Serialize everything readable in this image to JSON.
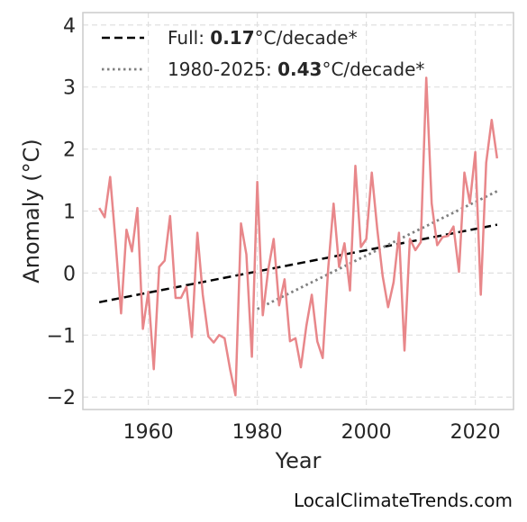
{
  "chart_data": {
    "type": "line",
    "title": "",
    "xlabel": "Year",
    "ylabel": "Anomaly (°C)",
    "xlim": [
      1948,
      2027
    ],
    "ylim": [
      -2.2,
      4.2
    ],
    "x_ticks": [
      1960,
      1980,
      2000,
      2020
    ],
    "x_tick_labels": [
      "1960",
      "1980",
      "2000",
      "2020"
    ],
    "y_ticks": [
      -2,
      -1,
      0,
      1,
      2,
      3,
      4
    ],
    "y_tick_labels": [
      "−2",
      "−1",
      "0",
      "1",
      "2",
      "3",
      "4"
    ],
    "grid": true,
    "legend_position": "top-left",
    "colors": {
      "series": "#e8878a",
      "full_trend": "#000000",
      "recent_trend": "#808080",
      "grid": "#e0e0e0",
      "frame": "#cccccc"
    },
    "series": [
      {
        "x": [
          1951,
          1952,
          1953,
          1954,
          1955,
          1956,
          1957,
          1958,
          1959,
          1960,
          1961,
          1962,
          1963,
          1964,
          1965,
          1966,
          1967,
          1968,
          1969,
          1970,
          1971,
          1972,
          1973,
          1974,
          1975,
          1976,
          1977,
          1978,
          1979,
          1980,
          1981,
          1982,
          1983,
          1984,
          1985,
          1986,
          1987,
          1988,
          1989,
          1990,
          1991,
          1992,
          1993,
          1994,
          1995,
          1996,
          1997,
          1998,
          1999,
          2000,
          2001,
          2002,
          2003,
          2004,
          2005,
          2006,
          2007,
          2008,
          2009,
          2010,
          2011,
          2012,
          2013,
          2014,
          2015,
          2016,
          2017,
          2018,
          2019,
          2020,
          2021,
          2022,
          2023,
          2024
        ],
        "values": [
          1.05,
          0.9,
          1.55,
          0.5,
          -0.65,
          0.7,
          0.35,
          1.05,
          -0.9,
          -0.3,
          -1.55,
          0.1,
          0.2,
          0.92,
          -0.4,
          -0.4,
          -0.22,
          -1.03,
          0.65,
          -0.35,
          -1.02,
          -1.12,
          -1.0,
          -1.05,
          -1.55,
          -1.97,
          0.8,
          0.3,
          -1.35,
          1.47,
          -0.68,
          0.05,
          0.55,
          -0.52,
          -0.1,
          -1.1,
          -1.05,
          -1.52,
          -0.85,
          -0.35,
          -1.1,
          -1.37,
          0.07,
          1.12,
          0.1,
          0.48,
          -0.28,
          1.73,
          0.42,
          0.55,
          1.62,
          0.72,
          -0.05,
          -0.55,
          -0.15,
          0.65,
          -1.25,
          0.55,
          0.37,
          0.5,
          3.15,
          1.12,
          0.45,
          0.58,
          0.6,
          0.75,
          0.02,
          1.62,
          1.13,
          1.95,
          -0.35,
          1.78,
          2.47,
          1.85
        ]
      }
    ],
    "trends": [
      {
        "label": "Full:",
        "value": "0.17",
        "unit": "°C/decade*",
        "style": "dashed",
        "x": [
          1951,
          2024
        ],
        "y": [
          -0.47,
          0.78
        ]
      },
      {
        "label": "1980-2025:",
        "value": "0.43",
        "unit": "°C/decade*",
        "style": "dotted",
        "x": [
          1980,
          2024
        ],
        "y": [
          -0.58,
          1.32
        ]
      }
    ]
  },
  "watermark": "LocalClimateTrends.com"
}
